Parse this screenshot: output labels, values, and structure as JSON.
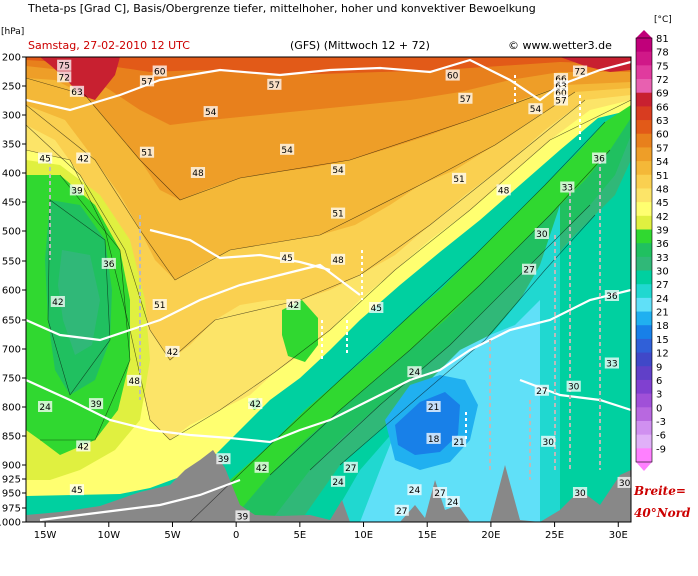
{
  "chart_data": {
    "type": "heatmap",
    "title": "Theta-ps [Grad C], Basis/Obergrenze tiefer, mittelhoher, hoher und konvektiver Bewoelkung",
    "subtitle_left": "Samstag, 27-02-2010  12 UTC",
    "subtitle_mid": "(GFS)  (Mittwoch 12 + 72)",
    "subtitle_right": "© www.wetter3.de",
    "y_unit": "[hPa]",
    "colorbar_unit": "[°C]",
    "note_line1": "Breite=",
    "note_line2": "40°Nord",
    "x_ticks": [
      {
        "label": "15W",
        "lon": -15
      },
      {
        "label": "10W",
        "lon": -10
      },
      {
        "label": "5W",
        "lon": -5
      },
      {
        "label": "0",
        "lon": 0
      },
      {
        "label": "5E",
        "lon": 5
      },
      {
        "label": "10E",
        "lon": 10
      },
      {
        "label": "15E",
        "lon": 15
      },
      {
        "label": "20E",
        "lon": 20
      },
      {
        "label": "25E",
        "lon": 25
      },
      {
        "label": "30E",
        "lon": 30
      }
    ],
    "y_ticks": [
      "200",
      "250",
      "300",
      "350",
      "400",
      "450",
      "500",
      "550",
      "600",
      "650",
      "700",
      "750",
      "800",
      "850",
      "900",
      "925",
      "950",
      "975",
      "1000"
    ],
    "xlim": [
      -16.5,
      31
    ],
    "ylim": [
      1000,
      200
    ],
    "colorbar_levels": [
      81,
      78,
      75,
      72,
      69,
      66,
      63,
      60,
      57,
      54,
      51,
      48,
      45,
      42,
      39,
      36,
      33,
      30,
      27,
      24,
      21,
      18,
      15,
      12,
      9,
      6,
      3,
      0,
      -3,
      -6,
      -9
    ],
    "colorbar_colors": [
      "#c0007a",
      "#d01888",
      "#e03a9e",
      "#e860b0",
      "#c82030",
      "#d83c20",
      "#e25a18",
      "#e8801c",
      "#ee9e28",
      "#f4b838",
      "#fad050",
      "#fce468",
      "#ffff70",
      "#e0f040",
      "#30d830",
      "#20c060",
      "#30b878",
      "#00d0a0",
      "#20d8d0",
      "#60e0f8",
      "#20b0f0",
      "#1880e8",
      "#3060d8",
      "#4048c8",
      "#6040c8",
      "#8040d0",
      "#a050d8",
      "#b868e0",
      "#d090f0",
      "#e0b0f8",
      "#ff80ff"
    ],
    "contour_labels": [
      {
        "lon": -13.5,
        "p": 215,
        "text": "75"
      },
      {
        "lon": -13.5,
        "p": 235,
        "text": "72"
      },
      {
        "lon": -12.5,
        "p": 260,
        "text": "63"
      },
      {
        "lon": -6,
        "p": 225,
        "text": "60"
      },
      {
        "lon": -7,
        "p": 242,
        "text": "57"
      },
      {
        "lon": -2,
        "p": 295,
        "text": "54"
      },
      {
        "lon": -7,
        "p": 365,
        "text": "51"
      },
      {
        "lon": -3,
        "p": 400,
        "text": "48"
      },
      {
        "lon": -15,
        "p": 375,
        "text": "45"
      },
      {
        "lon": -12,
        "p": 375,
        "text": "42"
      },
      {
        "lon": -12.5,
        "p": 430,
        "text": "39"
      },
      {
        "lon": -10,
        "p": 555,
        "text": "36"
      },
      {
        "lon": -14,
        "p": 620,
        "text": "42"
      },
      {
        "lon": -6,
        "p": 625,
        "text": "51"
      },
      {
        "lon": -8,
        "p": 755,
        "text": "48"
      },
      {
        "lon": -5,
        "p": 705,
        "text": "42"
      },
      {
        "lon": -11,
        "p": 795,
        "text": "39"
      },
      {
        "lon": -12,
        "p": 868,
        "text": "42"
      },
      {
        "lon": -15,
        "p": 800,
        "text": "24"
      },
      {
        "lon": -12.5,
        "p": 945,
        "text": "45"
      },
      {
        "lon": 3,
        "p": 248,
        "text": "57"
      },
      {
        "lon": 4,
        "p": 360,
        "text": "54"
      },
      {
        "lon": 8,
        "p": 395,
        "text": "54"
      },
      {
        "lon": 8,
        "p": 470,
        "text": "51"
      },
      {
        "lon": 4,
        "p": 545,
        "text": "45"
      },
      {
        "lon": 8,
        "p": 548,
        "text": "48"
      },
      {
        "lon": 4.5,
        "p": 625,
        "text": "42"
      },
      {
        "lon": 11,
        "p": 630,
        "text": "45"
      },
      {
        "lon": 1.5,
        "p": 795,
        "text": "42"
      },
      {
        "lon": -1,
        "p": 890,
        "text": "39"
      },
      {
        "lon": 2,
        "p": 905,
        "text": "42"
      },
      {
        "lon": 0.5,
        "p": 990,
        "text": "39"
      },
      {
        "lon": 17,
        "p": 232,
        "text": "60"
      },
      {
        "lon": 18,
        "p": 272,
        "text": "57"
      },
      {
        "lon": 23.5,
        "p": 290,
        "text": "54"
      },
      {
        "lon": 17.5,
        "p": 410,
        "text": "51"
      },
      {
        "lon": 21,
        "p": 430,
        "text": "48"
      },
      {
        "lon": 27,
        "p": 225,
        "text": "72"
      },
      {
        "lon": 25.5,
        "p": 238,
        "text": "66"
      },
      {
        "lon": 25.5,
        "p": 250,
        "text": "63"
      },
      {
        "lon": 25.5,
        "p": 262,
        "text": "60"
      },
      {
        "lon": 25.5,
        "p": 275,
        "text": "57"
      },
      {
        "lon": 28.5,
        "p": 375,
        "text": "36"
      },
      {
        "lon": 26,
        "p": 425,
        "text": "33"
      },
      {
        "lon": 24,
        "p": 505,
        "text": "30"
      },
      {
        "lon": 23,
        "p": 565,
        "text": "27"
      },
      {
        "lon": 29.5,
        "p": 610,
        "text": "36"
      },
      {
        "lon": 29.5,
        "p": 725,
        "text": "33"
      },
      {
        "lon": 26.5,
        "p": 765,
        "text": "30"
      },
      {
        "lon": 24,
        "p": 772,
        "text": "27"
      },
      {
        "lon": 24.5,
        "p": 860,
        "text": "30"
      },
      {
        "lon": 14,
        "p": 740,
        "text": "24"
      },
      {
        "lon": 15.5,
        "p": 800,
        "text": "21"
      },
      {
        "lon": 15.5,
        "p": 855,
        "text": "18"
      },
      {
        "lon": 17.5,
        "p": 860,
        "text": "21"
      },
      {
        "lon": 9,
        "p": 905,
        "text": "27"
      },
      {
        "lon": 8,
        "p": 930,
        "text": "24"
      },
      {
        "lon": 13,
        "p": 980,
        "text": "27"
      },
      {
        "lon": 14,
        "p": 945,
        "text": "24"
      },
      {
        "lon": 16,
        "p": 950,
        "text": "27"
      },
      {
        "lon": 17,
        "p": 965,
        "text": "24"
      },
      {
        "lon": 27,
        "p": 950,
        "text": "30"
      },
      {
        "lon": 30.5,
        "p": 932,
        "text": "30"
      }
    ]
  }
}
